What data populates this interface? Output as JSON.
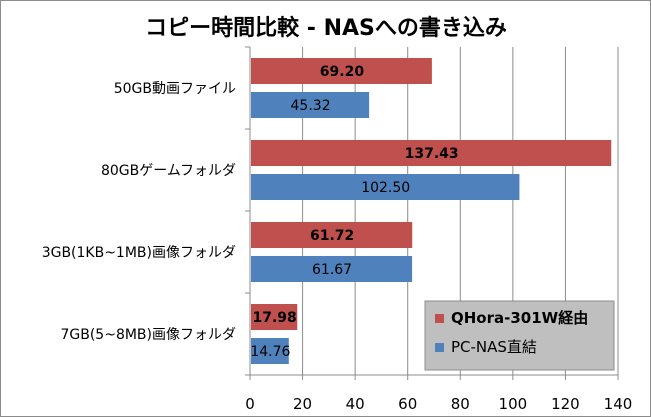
{
  "chart_data": {
    "type": "bar",
    "orientation": "horizontal",
    "title": "コピー時間比較 - NASへの書き込み",
    "categories": [
      "50GB動画ファイル",
      "80GBゲームフォルダ",
      "3GB(1KB~1MB)画像フォルダ",
      "7GB(5~8MB)画像フォルダ"
    ],
    "series": [
      {
        "name": "QHora-301W経由",
        "values": [
          69.2,
          137.43,
          61.72,
          17.98
        ],
        "labels": [
          "69.20",
          "137.43",
          "61.72",
          "17.98"
        ],
        "color": "#c0504d"
      },
      {
        "name": "PC-NAS直結",
        "values": [
          45.32,
          102.5,
          61.67,
          14.76
        ],
        "labels": [
          "45.32",
          "102.50",
          "61.67",
          "14.76"
        ],
        "color": "#4f81bd"
      }
    ],
    "xlim": [
      0,
      140
    ],
    "xticks": [
      "0",
      "20",
      "40",
      "60",
      "80",
      "100",
      "120",
      "140"
    ],
    "grid": true,
    "legend_position": "bottom-right",
    "legend_background": "#bfbfbf"
  }
}
